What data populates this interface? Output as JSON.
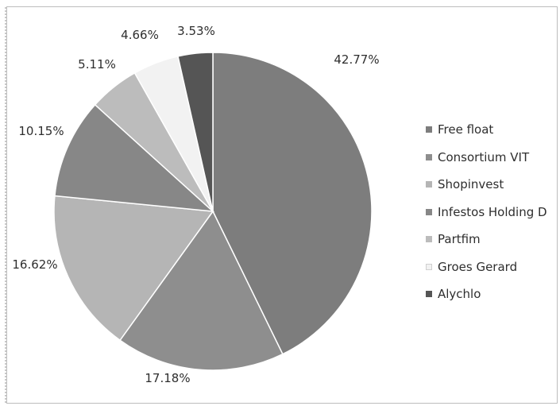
{
  "chart_data": {
    "type": "pie",
    "title": "",
    "legend_position": "right",
    "slices": [
      {
        "label": "Free float",
        "value": 42.77,
        "value_label": "42.77%",
        "color": "#7d7d7d"
      },
      {
        "label": "Consortium VIT",
        "value": 17.18,
        "value_label": "17.18%",
        "color": "#8e8e8e"
      },
      {
        "label": "Shopinvest",
        "value": 16.62,
        "value_label": "16.62%",
        "color": "#b5b5b5"
      },
      {
        "label": "Infestos Holding D",
        "value": 10.15,
        "value_label": "10.15%",
        "color": "#878787"
      },
      {
        "label": "Partfim",
        "value": 5.11,
        "value_label": "5.11%",
        "color": "#bcbcbc"
      },
      {
        "label": "Groes Gerard",
        "value": 4.66,
        "value_label": "4.66%",
        "color": "#f2f2f2"
      },
      {
        "label": "Alychlo",
        "value": 3.53,
        "value_label": "3.53%",
        "color": "#555555"
      }
    ]
  }
}
